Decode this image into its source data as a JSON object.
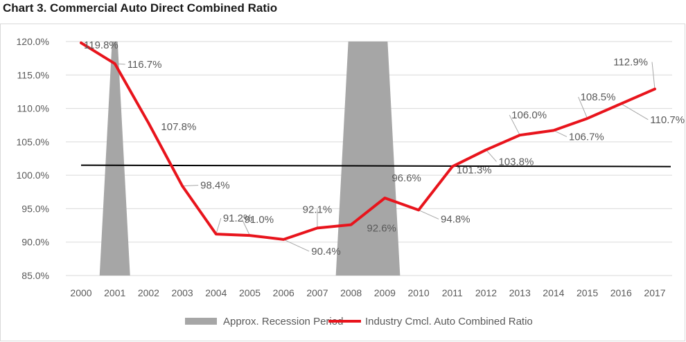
{
  "chart_data": {
    "type": "line",
    "title": "Chart 3. Commercial Auto Direct Combined Ratio",
    "categories": [
      "2000",
      "2001",
      "2002",
      "2003",
      "2004",
      "2005",
      "2006",
      "2007",
      "2008",
      "2009",
      "2010",
      "2011",
      "2012",
      "2013",
      "2014",
      "2015",
      "2016",
      "2017"
    ],
    "series": [
      {
        "name": "Industry Cmcl. Auto Combined Ratio",
        "values": [
          119.8,
          116.7,
          107.8,
          98.4,
          91.2,
          91.0,
          90.4,
          92.1,
          92.6,
          96.6,
          94.8,
          101.3,
          103.8,
          106.0,
          106.7,
          108.5,
          110.7,
          112.9
        ],
        "labels": [
          "119.8%",
          "116.7%",
          "107.8%",
          "98.4%",
          "91.2%",
          "91.0%",
          "90.4%",
          "92.1%",
          "92.6%",
          "96.6%",
          "94.8%",
          "101.3%",
          "103.8%",
          "106.0%",
          "106.7%",
          "108.5%",
          "110.7%",
          "112.9%"
        ],
        "color": "#e8141c"
      }
    ],
    "recession_periods": {
      "name": "Approx. Recession Period",
      "color": "#a6a6a6",
      "ranges": [
        [
          "2001",
          "2001"
        ],
        [
          "2008",
          "2009"
        ]
      ]
    },
    "reference_line": {
      "value_start": 101.5,
      "value_end": 101.3,
      "color": "#000000"
    },
    "ylim": [
      85.0,
      120.0
    ],
    "yticks": [
      85.0,
      90.0,
      95.0,
      100.0,
      105.0,
      110.0,
      115.0,
      120.0
    ],
    "ytick_labels": [
      "85.0%",
      "90.0%",
      "95.0%",
      "100.0%",
      "105.0%",
      "110.0%",
      "115.0%",
      "120.0%"
    ],
    "grid": true,
    "legend": {
      "position": "bottom",
      "items": [
        "Approx. Recession Period",
        "Industry Cmcl. Auto Combined Ratio"
      ]
    },
    "xlabel": "",
    "ylabel": ""
  }
}
